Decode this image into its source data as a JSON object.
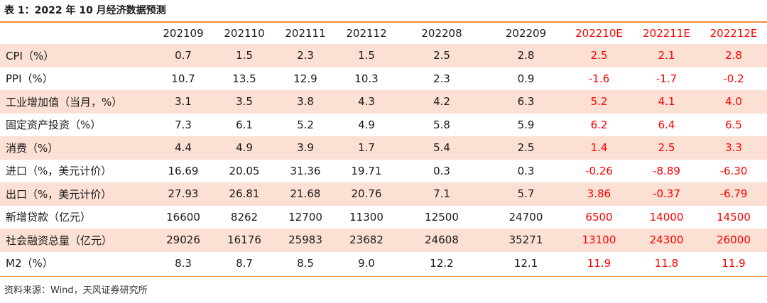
{
  "title": "表 1：2022 年 10 月经济数据预测",
  "columns": [
    "",
    "202109",
    "202110",
    "202111",
    "202112",
    "202208",
    "202209",
    "202210E",
    "202211E",
    "202212E"
  ],
  "rows": [
    {
      "label": "CPI（%）",
      "values": [
        "0.7",
        "1.5",
        "2.3",
        "1.5",
        "2.5",
        "2.8",
        "2.5",
        "2.1",
        "2.8"
      ]
    },
    {
      "label": "PPI（%）",
      "values": [
        "10.7",
        "13.5",
        "12.9",
        "10.3",
        "2.3",
        "0.9",
        "-1.6",
        "-1.7",
        "-0.2"
      ]
    },
    {
      "label": "工业增加值（当月，%）",
      "values": [
        "3.1",
        "3.5",
        "3.8",
        "4.3",
        "4.2",
        "6.3",
        "5.2",
        "4.1",
        "4.0"
      ]
    },
    {
      "label": "固定资产投资（%）",
      "values": [
        "7.3",
        "6.1",
        "5.2",
        "4.9",
        "5.8",
        "5.9",
        "6.2",
        "6.4",
        "6.5"
      ]
    },
    {
      "label": "消费（%）",
      "values": [
        "4.4",
        "4.9",
        "3.9",
        "1.7",
        "5.4",
        "2.5",
        "1.4",
        "2.5",
        "3.3"
      ]
    },
    {
      "label": "进口（%，美元计价）",
      "values": [
        "16.69",
        "20.05",
        "31.36",
        "19.71",
        "0.3",
        "0.3",
        "-0.26",
        "-8.89",
        "-6.30"
      ]
    },
    {
      "label": "出口（%，美元计价）",
      "values": [
        "27.93",
        "26.81",
        "21.68",
        "20.76",
        "7.1",
        "5.7",
        "3.86",
        "-0.37",
        "-6.79"
      ]
    },
    {
      "label": "新增贷款（亿元）",
      "values": [
        "16600",
        "8262",
        "12700",
        "11300",
        "12500",
        "24700",
        "6500",
        "14000",
        "14500"
      ]
    },
    {
      "label": "社会融资总量（亿元）",
      "values": [
        "29026",
        "16176",
        "25983",
        "23682",
        "24608",
        "35271",
        "13100",
        "24300",
        "26000"
      ]
    },
    {
      "label": "M2（%）",
      "values": [
        "8.3",
        "8.7",
        "8.5",
        "9.0",
        "12.2",
        "12.1",
        "11.9",
        "11.8",
        "11.9"
      ]
    }
  ],
  "source": "资料来源：Wind，天风证券研究所",
  "colors": {
    "accent_rule": "#f08a3c",
    "shaded_row": "#fbe0d3",
    "forecast_text": "#ff0000"
  }
}
